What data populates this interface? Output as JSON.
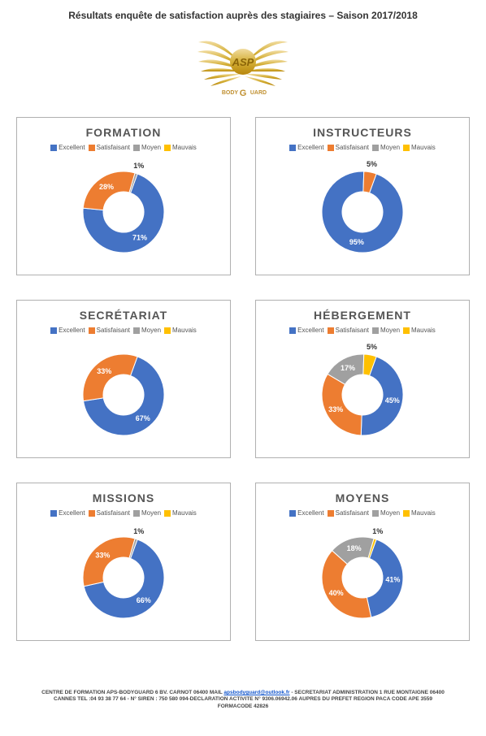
{
  "title": "Résultats enquête de satisfaction auprès des stagiaires – Saison 2017/2018",
  "logo_text_top": "ASP",
  "logo_text_bottom_left": "BODY",
  "logo_text_bottom_right": "UARD",
  "colors": {
    "excellent": "#4472c4",
    "satisfaisant": "#ed7d31",
    "moyen": "#a0a0a0",
    "mauvais": "#ffc000",
    "gold_dark": "#b8860b",
    "gold_light": "#e6c66e"
  },
  "legend_labels": {
    "excellent": "Excellent",
    "satisfaisant": "Satisfaisant",
    "moyen": "Moyen",
    "mauvais": "Mauvais"
  },
  "charts": [
    {
      "title": "FORMATION",
      "slices": [
        {
          "key": "excellent",
          "value": 71,
          "label": "71%"
        },
        {
          "key": "satisfaisant",
          "value": 28,
          "label": "28%"
        },
        {
          "key": "moyen",
          "value": 1,
          "label": "1%"
        }
      ]
    },
    {
      "title": "INSTRUCTEURS",
      "slices": [
        {
          "key": "excellent",
          "value": 95,
          "label": "95%"
        },
        {
          "key": "satisfaisant",
          "value": 5,
          "label": "5%"
        }
      ]
    },
    {
      "title": "SECRÉTARIAT",
      "slices": [
        {
          "key": "excellent",
          "value": 67,
          "label": "67%"
        },
        {
          "key": "satisfaisant",
          "value": 33,
          "label": "33%"
        }
      ]
    },
    {
      "title": "HÉBERGEMENT",
      "slices": [
        {
          "key": "excellent",
          "value": 45,
          "label": "45%"
        },
        {
          "key": "satisfaisant",
          "value": 33,
          "label": "33%"
        },
        {
          "key": "moyen",
          "value": 17,
          "label": "17%"
        },
        {
          "key": "mauvais",
          "value": 5,
          "label": "5%"
        }
      ]
    },
    {
      "title": "MISSIONS",
      "slices": [
        {
          "key": "excellent",
          "value": 66,
          "label": "66%"
        },
        {
          "key": "satisfaisant",
          "value": 33,
          "label": "33%"
        },
        {
          "key": "moyen",
          "value": 1,
          "label": "1%"
        }
      ]
    },
    {
      "title": "MOYENS",
      "slices": [
        {
          "key": "excellent",
          "value": 41,
          "label": "41%"
        },
        {
          "key": "satisfaisant",
          "value": 40,
          "label": "40%"
        },
        {
          "key": "moyen",
          "value": 18,
          "label": "18%"
        },
        {
          "key": "mauvais",
          "value": 1,
          "label": "1%"
        }
      ]
    }
  ],
  "donut": {
    "outer_radius": 50,
    "inner_radius": 25,
    "stroke": "#ffffff",
    "stroke_width": 1,
    "label_color": "#ffffff",
    "label_fontsize": 9,
    "label_fontweight": "bold",
    "start_angle_deg": 20
  },
  "footer": {
    "line1_a": "CENTRE DE FORMATION APS-BODYGUARD 6 BV. CARNOT 06400 MAIL ",
    "email": "apsbodyguard@outlook.fr",
    "line1_b": " - SECRETARIAT ADMINISTRATION 1 RUE MONTAIGNE 06400",
    "line2": "CANNES TEL :04 93 38 77 64 - N° SIREN : 750 580 094-DECLARATION ACTIVITE N° 9306.06942.06 AUPRES DU PREFET REGION PACA CODE APE 3559",
    "line3": "FORMACODE 42826"
  }
}
